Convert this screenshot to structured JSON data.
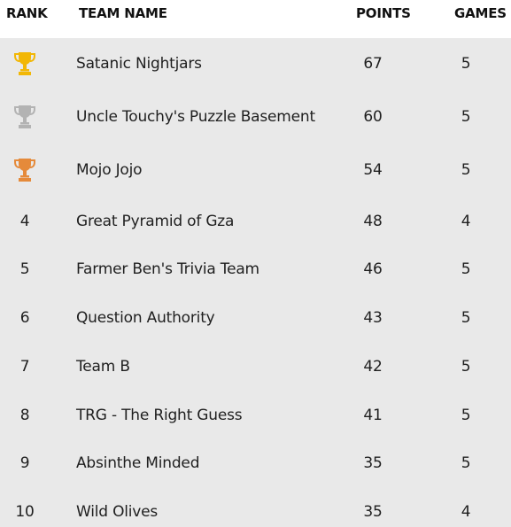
{
  "header": {
    "rank": "RANK",
    "team": "TEAM NAME",
    "points": "POINTS",
    "games": "GAMES"
  },
  "colors": {
    "gold": "#f2b705",
    "silver": "#b3b3b3",
    "bronze": "#e58a3a"
  },
  "rows": [
    {
      "rank": "",
      "trophy": "gold-trophy-icon",
      "team": "Satanic Nightjars",
      "points": "67",
      "games": "5"
    },
    {
      "rank": "",
      "trophy": "silver-trophy-icon",
      "team": "Uncle Touchy's Puzzle Basement",
      "points": "60",
      "games": "5"
    },
    {
      "rank": "",
      "trophy": "bronze-trophy-icon",
      "team": "Mojo Jojo",
      "points": "54",
      "games": "5"
    },
    {
      "rank": "4",
      "team": "Great Pyramid of Gza",
      "points": "48",
      "games": "4"
    },
    {
      "rank": "5",
      "team": "Farmer Ben's Trivia Team",
      "points": "46",
      "games": "5"
    },
    {
      "rank": "6",
      "team": "Question Authority",
      "points": "43",
      "games": "5"
    },
    {
      "rank": "7",
      "team": "Team B",
      "points": "42",
      "games": "5"
    },
    {
      "rank": "8",
      "team": "TRG - The Right Guess",
      "points": "41",
      "games": "5"
    },
    {
      "rank": "9",
      "team": "Absinthe Minded",
      "points": "35",
      "games": "5"
    },
    {
      "rank": "10",
      "team": "Wild Olives",
      "points": "35",
      "games": "4"
    }
  ]
}
